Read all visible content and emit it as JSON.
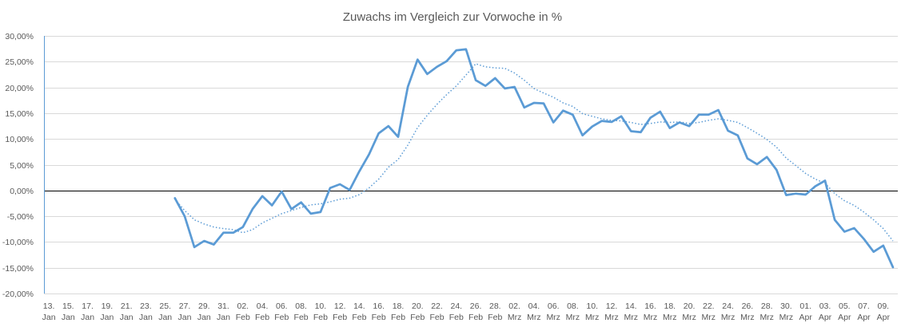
{
  "chart_data": {
    "type": "line",
    "title": "Zuwachs im Vergleich zur Vorwoche in %",
    "ylim": [
      -20,
      30
    ],
    "y_ticks": [
      30,
      25,
      20,
      15,
      10,
      5,
      0,
      -5,
      -10,
      -15,
      -20
    ],
    "y_tick_labels": [
      "30,00%",
      "25,00%",
      "20,00%",
      "15,00%",
      "10,00%",
      "5,00%",
      "0,00%",
      "-5,00%",
      "-10,00%",
      "-15,00%",
      "-20,00%"
    ],
    "x_tick_labels": [
      [
        "13.",
        "Jan"
      ],
      [
        "15.",
        "Jan"
      ],
      [
        "17.",
        "Jan"
      ],
      [
        "19.",
        "Jan"
      ],
      [
        "21.",
        "Jan"
      ],
      [
        "23.",
        "Jan"
      ],
      [
        "25.",
        "Jan"
      ],
      [
        "27.",
        "Jan"
      ],
      [
        "29.",
        "Jan"
      ],
      [
        "31.",
        "Jan"
      ],
      [
        "02.",
        "Feb"
      ],
      [
        "04.",
        "Feb"
      ],
      [
        "06.",
        "Feb"
      ],
      [
        "08.",
        "Feb"
      ],
      [
        "10.",
        "Feb"
      ],
      [
        "12.",
        "Feb"
      ],
      [
        "14.",
        "Feb"
      ],
      [
        "16.",
        "Feb"
      ],
      [
        "18.",
        "Feb"
      ],
      [
        "20.",
        "Feb"
      ],
      [
        "22.",
        "Feb"
      ],
      [
        "24.",
        "Feb"
      ],
      [
        "26.",
        "Feb"
      ],
      [
        "28.",
        "Feb"
      ],
      [
        "02.",
        "Mrz"
      ],
      [
        "04.",
        "Mrz"
      ],
      [
        "06.",
        "Mrz"
      ],
      [
        "08.",
        "Mrz"
      ],
      [
        "10.",
        "Mrz"
      ],
      [
        "12.",
        "Mrz"
      ],
      [
        "14.",
        "Mrz"
      ],
      [
        "16.",
        "Mrz"
      ],
      [
        "18.",
        "Mrz"
      ],
      [
        "20.",
        "Mrz"
      ],
      [
        "22.",
        "Mrz"
      ],
      [
        "24.",
        "Mrz"
      ],
      [
        "26.",
        "Mrz"
      ],
      [
        "28.",
        "Mrz"
      ],
      [
        "30.",
        "Mrz"
      ],
      [
        "01.",
        "Apr"
      ],
      [
        "03.",
        "Apr"
      ],
      [
        "05.",
        "Apr"
      ],
      [
        "07.",
        "Apr"
      ],
      [
        "09.",
        "Apr"
      ]
    ],
    "grid": true,
    "legend": "none",
    "series": [
      {
        "color": "#5b9bd5",
        "line_style": "solid",
        "values": [
          null,
          null,
          null,
          null,
          null,
          null,
          null,
          null,
          null,
          null,
          null,
          null,
          null,
          -1.5,
          -5.0,
          -11.0,
          -9.8,
          -10.5,
          -8.2,
          -8.2,
          -7.1,
          -3.6,
          -1.1,
          -2.9,
          -0.2,
          -3.6,
          -2.3,
          -4.5,
          -4.2,
          0.5,
          1.2,
          0.1,
          3.7,
          7.0,
          11.1,
          12.5,
          10.4,
          20.1,
          25.4,
          22.6,
          24.0,
          25.1,
          27.2,
          27.4,
          21.4,
          20.3,
          21.8,
          19.8,
          20.1,
          16.1,
          17.0,
          16.9,
          13.2,
          15.5,
          14.7,
          10.7,
          12.4,
          13.5,
          13.3,
          14.4,
          11.5,
          11.3,
          14.1,
          15.3,
          12.1,
          13.2,
          12.5,
          14.7,
          14.7,
          15.6,
          11.6,
          10.7,
          6.2,
          5.1,
          6.5,
          4.0,
          -0.9,
          -0.6,
          -0.8,
          0.8,
          1.9,
          -5.7,
          -8.0,
          -7.3,
          -9.4,
          -11.9,
          -10.7,
          -14.9
        ]
      },
      {
        "color": "#5b9bd5",
        "line_style": "dotted",
        "values": [
          null,
          null,
          null,
          null,
          null,
          null,
          null,
          null,
          null,
          null,
          null,
          null,
          null,
          -1.7,
          -3.9,
          -5.7,
          -6.5,
          -7.1,
          -7.4,
          -7.6,
          -8.2,
          -7.6,
          -6.3,
          -5.4,
          -4.5,
          -3.9,
          -3.3,
          -2.8,
          -2.6,
          -2.2,
          -1.7,
          -1.5,
          -0.8,
          0.5,
          2.2,
          4.5,
          6.0,
          8.8,
          12.2,
          14.6,
          16.7,
          18.6,
          20.3,
          22.4,
          24.6,
          24.0,
          23.8,
          23.7,
          22.8,
          21.4,
          19.8,
          18.9,
          18.1,
          17.0,
          16.3,
          14.9,
          14.4,
          13.9,
          13.6,
          13.5,
          13.2,
          12.8,
          13.0,
          13.3,
          13.2,
          13.3,
          13.0,
          13.2,
          13.6,
          13.9,
          13.6,
          13.2,
          12.2,
          11.1,
          9.9,
          8.4,
          6.3,
          4.8,
          3.3,
          2.2,
          1.4,
          -0.6,
          -2.0,
          -2.9,
          -4.2,
          -5.7,
          -7.4,
          -9.8
        ]
      }
    ]
  }
}
